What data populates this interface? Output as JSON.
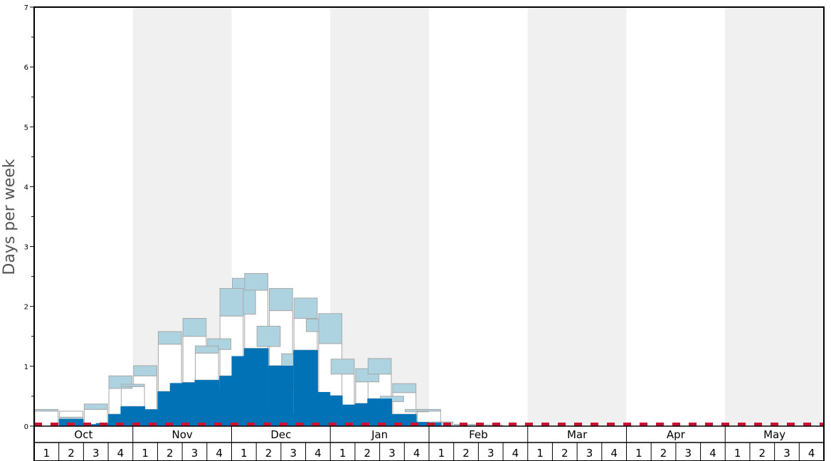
{
  "chart_data": {
    "type": "bar",
    "ylabel": "Days per week",
    "ylim": [
      0,
      7
    ],
    "y_ticks": [
      "0",
      "1",
      "2",
      "3",
      "4",
      "5",
      "6",
      "7"
    ],
    "months": [
      "Oct",
      "Nov",
      "Dec",
      "Jan",
      "Feb",
      "Mar",
      "Apr",
      "May"
    ],
    "weeks": [
      "1",
      "2",
      "3",
      "4"
    ],
    "grid": "alternating month shading",
    "colors": {
      "median_bar": "#0072b5",
      "quartile_box": "#add3e0",
      "range_box": "#ffffff",
      "box_edge": "#a8a8a8",
      "reference_line": "#cc1133",
      "shade": "#f0f0f0",
      "axis": "#000000"
    },
    "periods": [
      {
        "month": "Oct",
        "week": "1",
        "median": 0.0,
        "box": [
          0.25,
          0.28
        ],
        "range": [
          0.0,
          0.25
        ]
      },
      {
        "month": "Oct",
        "week": "2",
        "median": 0.12,
        "box": [
          0.12,
          0.15
        ],
        "range": [
          0.12,
          0.25
        ]
      },
      {
        "month": "Oct",
        "week": "3",
        "median": 0.03,
        "box": [
          0.28,
          0.37
        ],
        "range": [
          0.03,
          0.28
        ]
      },
      {
        "month": "Oct",
        "week": "4",
        "median": 0.2,
        "box": [
          0.63,
          0.84
        ],
        "range": [
          0.2,
          0.63
        ]
      },
      {
        "month": "Nov",
        "week": "1",
        "median": 0.28,
        "box": [
          0.84,
          1.01
        ],
        "range": [
          0.28,
          0.84
        ]
      },
      {
        "month": "Nov",
        "week": "2",
        "median": 0.58,
        "box": [
          1.37,
          1.58
        ],
        "range": [
          0.58,
          1.37
        ]
      },
      {
        "month": "Nov",
        "week": "3",
        "median": 0.73,
        "box": [
          1.5,
          1.8
        ],
        "range": [
          0.73,
          1.5
        ]
      },
      {
        "month": "Nov",
        "week": "4",
        "median": 0.62,
        "box": [
          1.28,
          1.46
        ],
        "range": [
          0.62,
          1.28
        ]
      },
      {
        "month": "Dec",
        "week": "1",
        "median": 1.17,
        "box": [
          1.87,
          2.47
        ],
        "range": [
          1.17,
          1.87
        ]
      },
      {
        "month": "Dec",
        "week": "2",
        "median": 0.28,
        "box": [
          1.33,
          1.67
        ],
        "range": [
          0.28,
          1.33
        ]
      },
      {
        "month": "Dec",
        "week": "3",
        "median": 0.2,
        "box": [
          0.66,
          1.21
        ],
        "range": [
          0.2,
          0.66
        ]
      },
      {
        "month": "Dec",
        "week": "4",
        "median": 0.57,
        "box": [
          1.58,
          1.79
        ],
        "range": [
          0.57,
          1.58
        ]
      },
      {
        "month": "Jan",
        "week": "1",
        "median": 0.28,
        "box": [
          0.87,
          1.12
        ],
        "range": [
          0.28,
          0.87
        ]
      },
      {
        "month": "Jan",
        "week": "2",
        "median": 0.38,
        "box": [
          0.74,
          0.96
        ],
        "range": [
          0.38,
          0.74
        ]
      },
      {
        "month": "Jan",
        "week": "3",
        "median": 0.13,
        "box": [
          0.41,
          0.5
        ],
        "range": [
          0.13,
          0.41
        ]
      },
      {
        "month": "Jan",
        "week": "4",
        "median": 0.07,
        "box": [
          0.24,
          0.28
        ],
        "range": [
          0.07,
          0.24
        ]
      },
      {
        "month": "Feb",
        "week": "1",
        "median": 0.0,
        "box": [
          0.0,
          0.07
        ],
        "range": [
          0.0,
          0.0
        ]
      },
      {
        "month": "Feb",
        "week": "2",
        "median": 0.0,
        "box": [
          0.0,
          0.03
        ],
        "range": [
          0.0,
          0.0
        ]
      },
      {
        "month": "Feb",
        "week": "3",
        "median": 0.0,
        "box": [
          0.0,
          0.02
        ],
        "range": [
          0.0,
          0.0
        ]
      },
      {
        "month": "Feb",
        "week": "4",
        "median": 0.0,
        "box": [
          0.0,
          0.0
        ],
        "range": [
          0.0,
          0.0
        ]
      },
      {
        "month": "Mar",
        "week": "1",
        "median": 0.0,
        "box": [
          0.0,
          0.0
        ],
        "range": [
          0.0,
          0.0
        ]
      },
      {
        "month": "Mar",
        "week": "2",
        "median": 0.0,
        "box": [
          0.0,
          0.0
        ],
        "range": [
          0.0,
          0.0
        ]
      },
      {
        "month": "Mar",
        "week": "3",
        "median": 0.0,
        "box": [
          0.0,
          0.0
        ],
        "range": [
          0.0,
          0.0
        ]
      },
      {
        "month": "Mar",
        "week": "4",
        "median": 0.0,
        "box": [
          0.0,
          0.0
        ],
        "range": [
          0.0,
          0.0
        ]
      },
      {
        "month": "Apr",
        "week": "1",
        "median": 0.0,
        "box": [
          0.0,
          0.0
        ],
        "range": [
          0.0,
          0.0
        ]
      },
      {
        "month": "Apr",
        "week": "2",
        "median": 0.0,
        "box": [
          0.0,
          0.0
        ],
        "range": [
          0.0,
          0.0
        ]
      },
      {
        "month": "Apr",
        "week": "3",
        "median": 0.0,
        "box": [
          0.0,
          0.0
        ],
        "range": [
          0.0,
          0.0
        ]
      },
      {
        "month": "Apr",
        "week": "4",
        "median": 0.0,
        "box": [
          0.0,
          0.0
        ],
        "range": [
          0.0,
          0.0
        ]
      },
      {
        "month": "May",
        "week": "1",
        "median": 0.0,
        "box": [
          0.0,
          0.0
        ],
        "range": [
          0.0,
          0.0
        ]
      },
      {
        "month": "May",
        "week": "2",
        "median": 0.0,
        "box": [
          0.0,
          0.0
        ],
        "range": [
          0.0,
          0.0
        ]
      },
      {
        "month": "May",
        "week": "3",
        "median": 0.0,
        "box": [
          0.0,
          0.0
        ],
        "range": [
          0.0,
          0.0
        ]
      },
      {
        "month": "May",
        "week": "4",
        "median": 0.0,
        "box": [
          0.0,
          0.0
        ],
        "range": [
          0.0,
          0.0
        ]
      }
    ],
    "offset_series": [
      {
        "month": "Oct",
        "week": "1",
        "median": 0.0,
        "box": [
          0.0,
          0.0
        ],
        "range": [
          0.0,
          0.0
        ]
      },
      {
        "month": "Oct",
        "week": "2",
        "median": 0.0,
        "box": [
          0.0,
          0.0
        ],
        "range": [
          0.0,
          0.0
        ]
      },
      {
        "month": "Oct",
        "week": "3",
        "median": 0.05,
        "box": [
          0.0,
          0.0
        ],
        "range": [
          0.0,
          0.0
        ]
      },
      {
        "month": "Oct",
        "week": "4",
        "median": 0.33,
        "box": [
          0.66,
          0.7
        ],
        "range": [
          0.33,
          0.66
        ]
      },
      {
        "month": "Nov",
        "week": "1",
        "median": 0.28,
        "box": [
          0.0,
          0.0
        ],
        "range": [
          0.28,
          0.0
        ]
      },
      {
        "month": "Nov",
        "week": "2",
        "median": 0.72,
        "box": [
          0.0,
          0.0
        ],
        "range": [
          0.72,
          0.0
        ]
      },
      {
        "month": "Nov",
        "week": "3",
        "median": 0.77,
        "box": [
          1.22,
          1.34
        ],
        "range": [
          0.77,
          1.22
        ]
      },
      {
        "month": "Nov",
        "week": "4",
        "median": 0.84,
        "box": [
          1.84,
          2.3
        ],
        "range": [
          0.84,
          1.84
        ]
      },
      {
        "month": "Dec",
        "week": "1",
        "median": 1.3,
        "box": [
          2.27,
          2.55
        ],
        "range": [
          1.3,
          2.27
        ]
      },
      {
        "month": "Dec",
        "week": "2",
        "median": 1.01,
        "box": [
          1.93,
          2.3
        ],
        "range": [
          1.01,
          1.93
        ]
      },
      {
        "month": "Dec",
        "week": "3",
        "median": 1.27,
        "box": [
          1.8,
          2.14
        ],
        "range": [
          1.27,
          1.8
        ]
      },
      {
        "month": "Dec",
        "week": "4",
        "median": 0.51,
        "box": [
          1.38,
          1.88
        ],
        "range": [
          0.51,
          1.38
        ]
      },
      {
        "month": "Jan",
        "week": "1",
        "median": 0.36,
        "box": [
          0.0,
          0.0
        ],
        "range": [
          0.36,
          0.0
        ]
      },
      {
        "month": "Jan",
        "week": "2",
        "median": 0.46,
        "box": [
          0.87,
          1.13
        ],
        "range": [
          0.46,
          0.87
        ]
      },
      {
        "month": "Jan",
        "week": "3",
        "median": 0.2,
        "box": [
          0.56,
          0.71
        ],
        "range": [
          0.2,
          0.56
        ]
      },
      {
        "month": "Jan",
        "week": "4",
        "median": 0.06,
        "box": [
          0.25,
          0.28
        ],
        "range": [
          0.06,
          0.25
        ]
      }
    ],
    "reference_value": 0.03
  }
}
